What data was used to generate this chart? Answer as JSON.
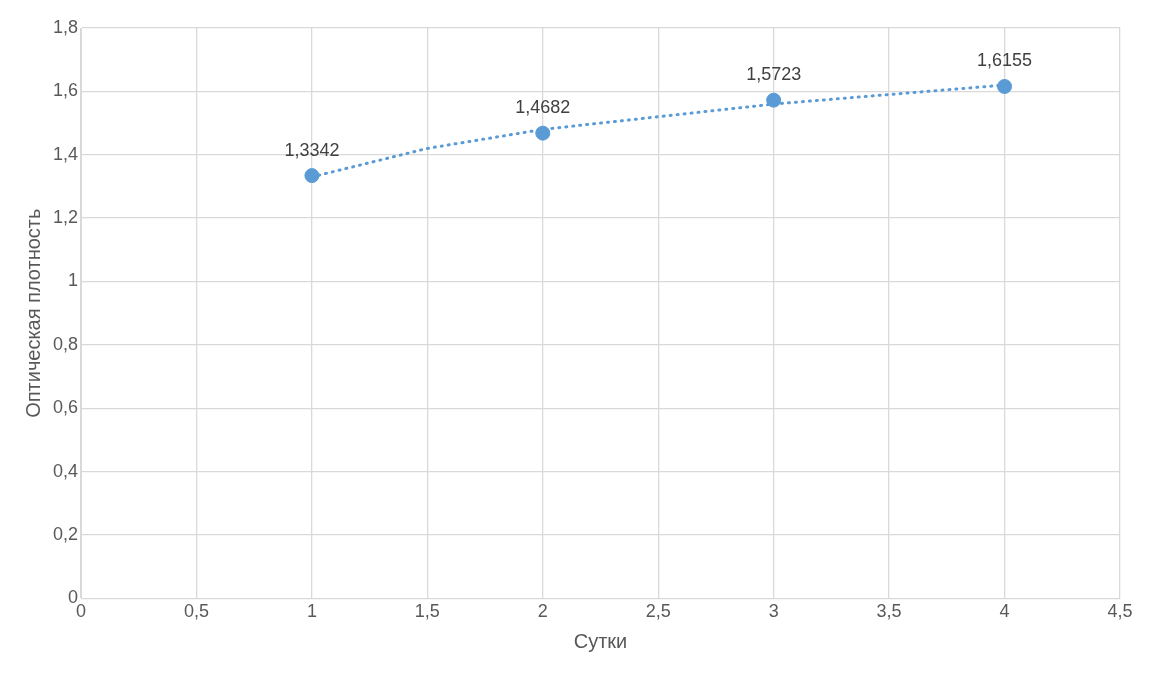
{
  "chart_data": {
    "type": "scatter",
    "xlabel": "Сутки",
    "ylabel": "Оптическая плотность",
    "x": [
      1,
      2,
      3,
      4
    ],
    "series": [
      {
        "color": "#5b9bd5",
        "values": [
          1.3342,
          1.4682,
          1.5723,
          1.6155
        ],
        "value_labels": [
          "1,3342",
          "1,4682",
          "1,5723",
          "1,6155"
        ],
        "marker": "circle"
      },
      {
        "type": "line",
        "color": "#5b9bd5",
        "x": [
          1,
          1.5,
          2,
          2.5,
          3,
          3.5,
          4
        ],
        "values": [
          1.33,
          1.42,
          1.48,
          1.52,
          1.56,
          1.59,
          1.62
        ],
        "line_style": "dotted",
        "marker": "none"
      }
    ],
    "xlim": [
      0,
      4.5
    ],
    "xticks": [
      0,
      {
        "value": 0.5,
        "label": "0,5"
      },
      1,
      {
        "value": 1.5,
        "label": "1,5"
      },
      2,
      {
        "value": 2.5,
        "label": "2,5"
      },
      3,
      {
        "value": 3.5,
        "label": "3,5"
      },
      4,
      {
        "value": 4.5,
        "label": "4,5"
      }
    ],
    "ylim": [
      0,
      1.8
    ],
    "yticks": [
      0,
      {
        "value": 0.2,
        "label": "0,2"
      },
      {
        "value": 0.4,
        "label": "0,4"
      },
      {
        "value": 0.6,
        "label": "0,6"
      },
      {
        "value": 0.8,
        "label": "0,8"
      },
      1,
      {
        "value": 1.2,
        "label": "1,2"
      },
      {
        "value": 1.4,
        "label": "1,4"
      },
      {
        "value": 1.6,
        "label": "1,6"
      },
      {
        "value": 1.8,
        "label": "1,8"
      }
    ],
    "grid": true,
    "legend": false
  }
}
